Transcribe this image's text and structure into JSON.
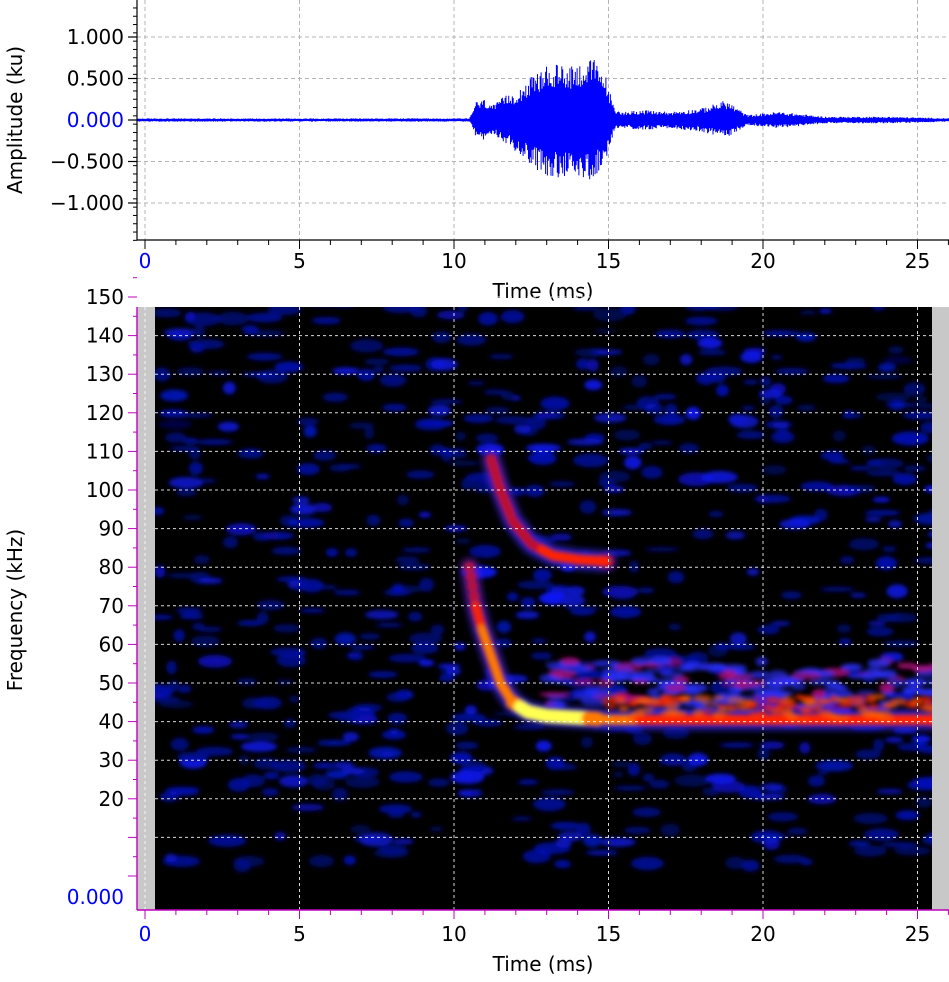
{
  "waveform": {
    "ylabel": "Amplitude (ku)",
    "xlabel": "Time (ms)",
    "ytick_labels": [
      "1.000",
      "0.500",
      "0.000",
      "−0.500",
      "−1.000"
    ],
    "xtick_labels": [
      "0",
      "5",
      "10",
      "15",
      "20",
      "25"
    ],
    "colors": {
      "signal": "#0000ff",
      "zero_label": "#0000ff",
      "grid": "#b0b0b0",
      "axis": "#000000"
    }
  },
  "spectrogram": {
    "ylabel": "Frequency (kHz)",
    "xlabel": "Time (ms)",
    "ytick_labels": [
      "150",
      "140",
      "130",
      "120",
      "110",
      "100",
      "90",
      "80",
      "70",
      "60",
      "50",
      "40",
      "30",
      "20",
      "0.000"
    ],
    "xtick_labels": [
      "0",
      "5",
      "10",
      "15",
      "20",
      "25"
    ],
    "colors": {
      "background": "#000000",
      "noise": "#0a1cff",
      "hot": "#ff2a00",
      "peak": "#ffff40",
      "margin": "#c8c8c8",
      "axis_magenta": "#c000c0"
    }
  },
  "chart_data": [
    {
      "type": "line",
      "title": "",
      "xlabel": "Time (ms)",
      "ylabel": "Amplitude (ku)",
      "xlim": [
        0,
        26.2
      ],
      "ylim": [
        -1.45,
        1.45
      ],
      "yticks": [
        1.0,
        0.5,
        0.0,
        -0.5,
        -1.0
      ],
      "xticks": [
        0,
        5,
        10,
        15,
        20,
        25
      ],
      "grid": true,
      "envelope": {
        "x": [
          0,
          10.5,
          10.7,
          11.0,
          11.3,
          11.6,
          12.0,
          12.5,
          13.0,
          13.5,
          14.0,
          14.5,
          14.9,
          15.2,
          15.5,
          16.0,
          17.0,
          18.0,
          18.8,
          19.5,
          20.5,
          22.0,
          24.0,
          26.2
        ],
        "upper": [
          0.02,
          0.02,
          0.22,
          0.25,
          0.18,
          0.28,
          0.35,
          0.52,
          0.65,
          0.68,
          0.68,
          0.75,
          0.55,
          0.12,
          0.1,
          0.12,
          0.1,
          0.14,
          0.24,
          0.06,
          0.1,
          0.04,
          0.04,
          0.02
        ],
        "lower": [
          -0.02,
          -0.02,
          -0.2,
          -0.25,
          -0.18,
          -0.28,
          -0.38,
          -0.55,
          -0.68,
          -0.7,
          -0.7,
          -0.72,
          -0.5,
          -0.12,
          -0.1,
          -0.12,
          -0.1,
          -0.14,
          -0.22,
          -0.06,
          -0.1,
          -0.04,
          -0.04,
          -0.02
        ]
      }
    },
    {
      "type": "heatmap",
      "title": "",
      "xlabel": "Time (ms)",
      "ylabel": "Frequency (kHz)",
      "xlim": [
        0,
        26.2
      ],
      "ylim": [
        0,
        156
      ],
      "yticks": [
        150,
        140,
        130,
        120,
        110,
        100,
        90,
        80,
        70,
        60,
        50,
        40,
        30,
        20,
        0
      ],
      "xticks": [
        0,
        5,
        10,
        15,
        20,
        25
      ],
      "grid": true,
      "data_time_range_ms": [
        0.4,
        25.7
      ],
      "harmonics": [
        {
          "t": [
            11.2,
            11.5,
            11.9,
            12.5,
            13.2,
            14.0,
            15.0
          ],
          "f": [
            108,
            100,
            92,
            86,
            83,
            82,
            81.5
          ],
          "intensity": [
            0.45,
            0.55,
            0.45,
            0.55,
            0.65,
            0.7,
            0.7
          ]
        },
        {
          "t": [
            10.5,
            10.7,
            10.9,
            11.2,
            11.5,
            11.9,
            12.4,
            13.0,
            14.0,
            15.0,
            16.0,
            18.0,
            20.0,
            22.0,
            24.0,
            25.7
          ],
          "f": [
            80,
            70,
            64,
            57,
            50,
            45,
            42.5,
            41.5,
            41,
            40.5,
            40.5,
            40.5,
            40.5,
            40.5,
            40.5,
            40.5
          ],
          "intensity": [
            0.45,
            0.6,
            0.85,
            0.85,
            0.8,
            0.9,
            1.0,
            1.0,
            1.0,
            0.85,
            0.8,
            0.75,
            0.7,
            0.7,
            0.7,
            0.6
          ]
        }
      ]
    }
  ]
}
